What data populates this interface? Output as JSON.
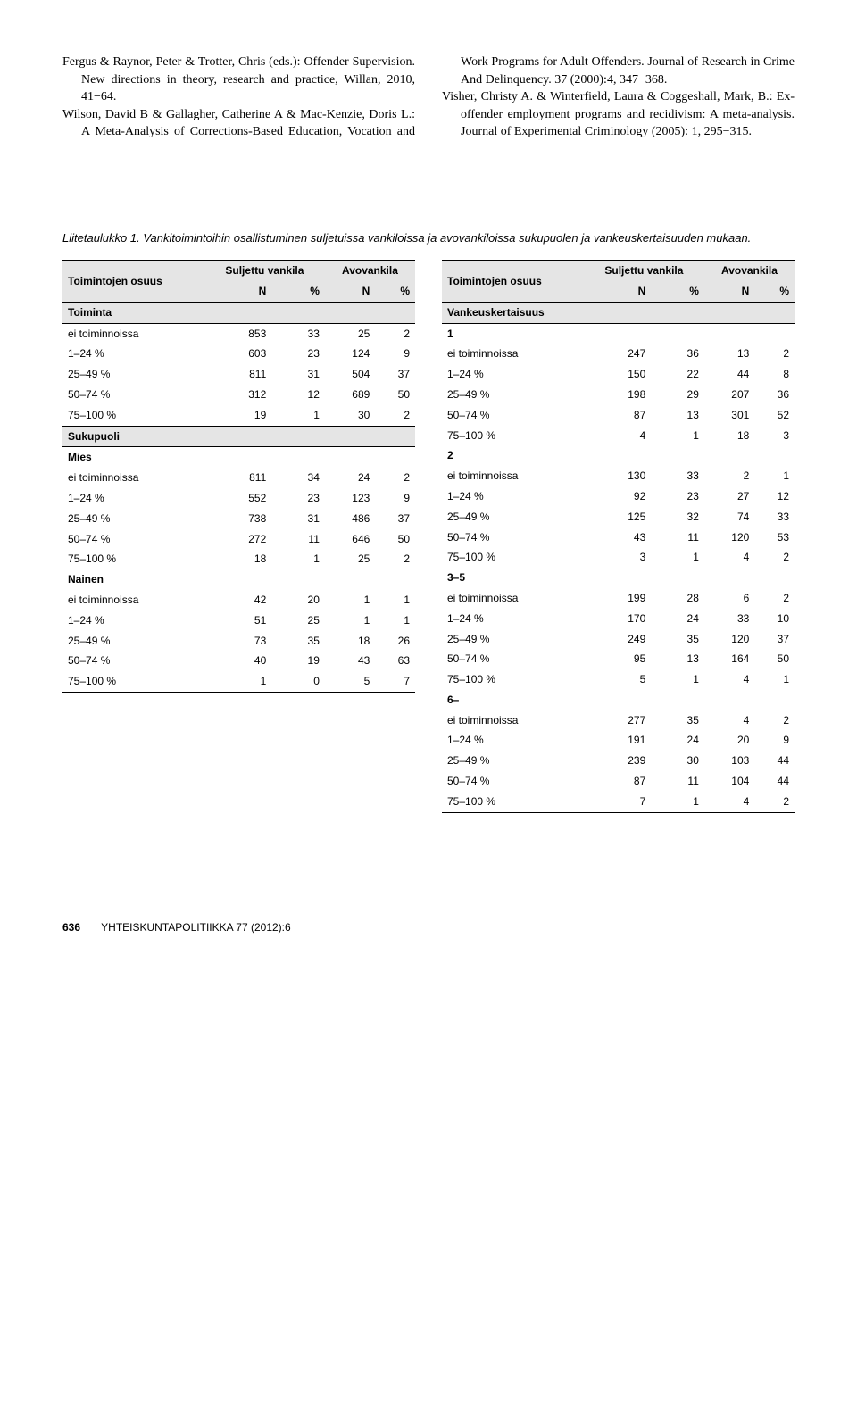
{
  "references": [
    "Fergus & Raynor, Peter & Trotter, Chris (eds.): Offender Supervision. New directions in theory, research and practice, Willan, 2010, 41−64.",
    "Wilson, David B & Gallagher, Catherine A & Mac-Kenzie, Doris L.: A Meta-Analysis of Corrections-Based Education, Vocation and Work Programs for Adult Offenders. Journal of Research in Crime And Delinquency. 37 (2000):4, 347−368.",
    "Visher, Christy A. & Winterfield, Laura & Coggeshall, Mark, B.: Ex-offender employment programs and recidivism: A meta-analysis. Journal of Experimental Criminology (2005): 1, 295−315."
  ],
  "caption": "Liitetaulukko 1. Vankitoimintoihin osallistuminen suljetuissa vankiloissa ja avovankiloissa sukupuolen ja vankeuskertaisuuden mukaan.",
  "header": {
    "col1": "Toimintojen osuus",
    "group1": "Suljettu vankila",
    "group2": "Avovankila",
    "sub": [
      "N",
      "%",
      "N",
      "%"
    ]
  },
  "left_sections": [
    {
      "title": "Toiminta",
      "rows": [
        [
          "ei toiminnoissa",
          "853",
          "33",
          "25",
          "2"
        ],
        [
          "1–24 %",
          "603",
          "23",
          "124",
          "9"
        ],
        [
          "25–49 %",
          "811",
          "31",
          "504",
          "37"
        ],
        [
          "50–74 %",
          "312",
          "12",
          "689",
          "50"
        ],
        [
          "75–100 %",
          "19",
          "1",
          "30",
          "2"
        ]
      ]
    },
    {
      "title": "Sukupuoli",
      "rows": []
    },
    {
      "title_plain": "Mies",
      "rows": [
        [
          "ei toiminnoissa",
          "811",
          "34",
          "24",
          "2"
        ],
        [
          "1–24 %",
          "552",
          "23",
          "123",
          "9"
        ],
        [
          "25–49 %",
          "738",
          "31",
          "486",
          "37"
        ],
        [
          "50–74 %",
          "272",
          "11",
          "646",
          "50"
        ],
        [
          "75–100 %",
          "18",
          "1",
          "25",
          "2"
        ]
      ]
    },
    {
      "title_plain": "Nainen",
      "rows": [
        [
          "ei toiminnoissa",
          "42",
          "20",
          "1",
          "1"
        ],
        [
          "1–24 %",
          "51",
          "25",
          "1",
          "1"
        ],
        [
          "25–49 %",
          "73",
          "35",
          "18",
          "26"
        ],
        [
          "50–74 %",
          "40",
          "19",
          "43",
          "63"
        ],
        [
          "75–100 %",
          "1",
          "0",
          "5",
          "7"
        ]
      ]
    }
  ],
  "right_sections": [
    {
      "title": "Vankeuskertaisuus",
      "rows": []
    },
    {
      "title_plain": "1",
      "rows": [
        [
          "ei toiminnoissa",
          "247",
          "36",
          "13",
          "2"
        ],
        [
          "1–24 %",
          "150",
          "22",
          "44",
          "8"
        ],
        [
          "25–49 %",
          "198",
          "29",
          "207",
          "36"
        ],
        [
          "50–74 %",
          "87",
          "13",
          "301",
          "52"
        ],
        [
          "75–100 %",
          "4",
          "1",
          "18",
          "3"
        ]
      ]
    },
    {
      "title_plain": "2",
      "rows": [
        [
          "ei toiminnoissa",
          "130",
          "33",
          "2",
          "1"
        ],
        [
          "1–24 %",
          "92",
          "23",
          "27",
          "12"
        ],
        [
          "25–49 %",
          "125",
          "32",
          "74",
          "33"
        ],
        [
          "50–74 %",
          "43",
          "11",
          "120",
          "53"
        ],
        [
          "75–100 %",
          "3",
          "1",
          "4",
          "2"
        ]
      ]
    },
    {
      "title_plain": "3–5",
      "rows": [
        [
          "ei toiminnoissa",
          "199",
          "28",
          "6",
          "2"
        ],
        [
          "1–24 %",
          "170",
          "24",
          "33",
          "10"
        ],
        [
          "25–49 %",
          "249",
          "35",
          "120",
          "37"
        ],
        [
          "50–74 %",
          "95",
          "13",
          "164",
          "50"
        ],
        [
          "75–100 %",
          "5",
          "1",
          "4",
          "1"
        ]
      ]
    },
    {
      "title_plain": "6–",
      "rows": [
        [
          "ei toiminnoissa",
          "277",
          "35",
          "4",
          "2"
        ],
        [
          "1–24 %",
          "191",
          "24",
          "20",
          "9"
        ],
        [
          "25–49 %",
          "239",
          "30",
          "103",
          "44"
        ],
        [
          "50–74 %",
          "87",
          "11",
          "104",
          "44"
        ],
        [
          "75–100 %",
          "7",
          "1",
          "4",
          "2"
        ]
      ]
    }
  ],
  "footer": {
    "page": "636",
    "journal": "YHTEISKUNTAPOLITIIKKA 77 (2012):6"
  },
  "style": {
    "header_bg": "#e5e5e5",
    "section_bg": "#e5e5e5",
    "border": "#000000",
    "body_font": "Georgia",
    "table_font": "Arial",
    "body_fontsize": 14,
    "table_fontsize": 12
  }
}
